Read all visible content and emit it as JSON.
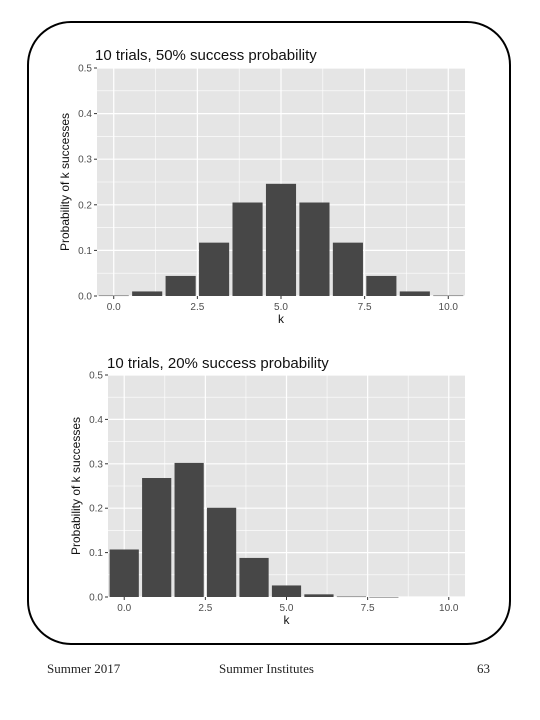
{
  "footer": {
    "left": "Summer 2017",
    "center": "Summer Institutes",
    "right": "63"
  },
  "colors": {
    "panel": "#e5e5e5",
    "grid": "#ffffff",
    "bar": "#474747",
    "axis_text": "#4d4d4d"
  },
  "chart_data": [
    {
      "type": "bar",
      "title": "10 trials, 50% success probability",
      "xlabel": "k",
      "ylabel": "Probability of k successes",
      "xlim": [
        -0.5,
        10.5
      ],
      "ylim": [
        0,
        0.5
      ],
      "x_ticks": [
        "0.0",
        "2.5",
        "5.0",
        "7.5",
        "10.0"
      ],
      "y_ticks": [
        "0.0",
        "0.1",
        "0.2",
        "0.3",
        "0.4",
        "0.5"
      ],
      "grid": true,
      "x": [
        0,
        1,
        2,
        3,
        4,
        5,
        6,
        7,
        8,
        9,
        10
      ],
      "values": [
        0.001,
        0.01,
        0.044,
        0.117,
        0.205,
        0.246,
        0.205,
        0.117,
        0.044,
        0.01,
        0.001
      ]
    },
    {
      "type": "bar",
      "title": "10 trials, 20% success probability",
      "xlabel": "k",
      "ylabel": "Probability of k successes",
      "xlim": [
        -0.5,
        10.5
      ],
      "ylim": [
        0,
        0.5
      ],
      "x_ticks": [
        "0.0",
        "2.5",
        "5.0",
        "7.5",
        "10.0"
      ],
      "y_ticks": [
        "0.0",
        "0.1",
        "0.2",
        "0.3",
        "0.4",
        "0.5"
      ],
      "grid": true,
      "x": [
        0,
        1,
        2,
        3,
        4,
        5,
        6,
        7,
        8,
        9,
        10
      ],
      "values": [
        0.107,
        0.268,
        0.302,
        0.201,
        0.088,
        0.026,
        0.006,
        0.001,
        0.0001,
        0.0,
        0.0
      ]
    }
  ]
}
